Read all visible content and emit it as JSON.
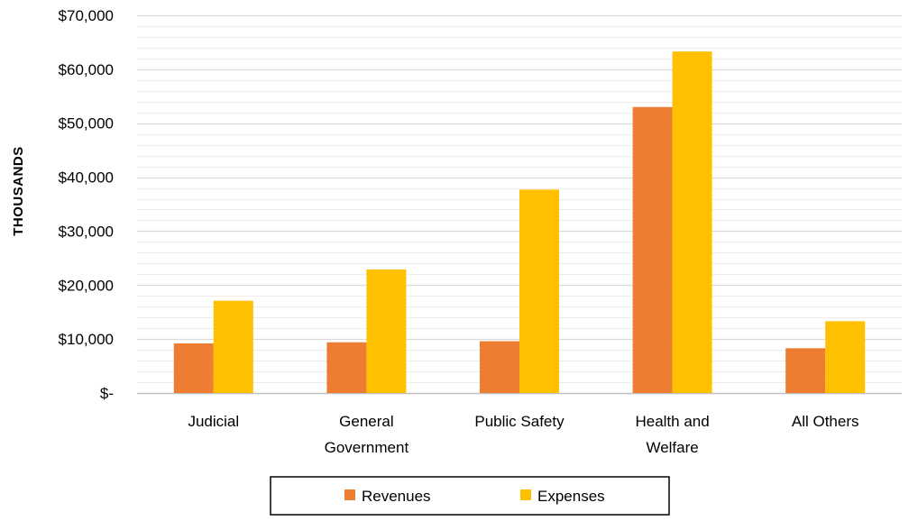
{
  "chart_data": {
    "type": "bar",
    "title": "",
    "xlabel": "",
    "ylabel": "THOUSANDS",
    "categories": [
      [
        "Judicial"
      ],
      [
        "General",
        "Government"
      ],
      [
        "Public Safety"
      ],
      [
        "Health and",
        "Welfare"
      ],
      [
        "All Others"
      ]
    ],
    "series": [
      {
        "name": "Revenues",
        "color": "#ED7D31",
        "values": [
          9200,
          9400,
          9600,
          53000,
          8300
        ]
      },
      {
        "name": "Expenses",
        "color": "#FFC000",
        "values": [
          17100,
          22900,
          37700,
          63300,
          13300
        ]
      }
    ],
    "ylim": [
      0,
      70000
    ],
    "y_major_step": 10000,
    "y_minor_step": 2000,
    "y_tick_labels": [
      "$-",
      "$10,000",
      "$20,000",
      "$30,000",
      "$40,000",
      "$50,000",
      "$60,000",
      "$70,000"
    ],
    "grid": true,
    "legend_position": "bottom",
    "colors": {
      "major_grid": "#D9D9D9",
      "minor_grid": "#EDEDED",
      "axis": "#BFBFBF"
    }
  }
}
